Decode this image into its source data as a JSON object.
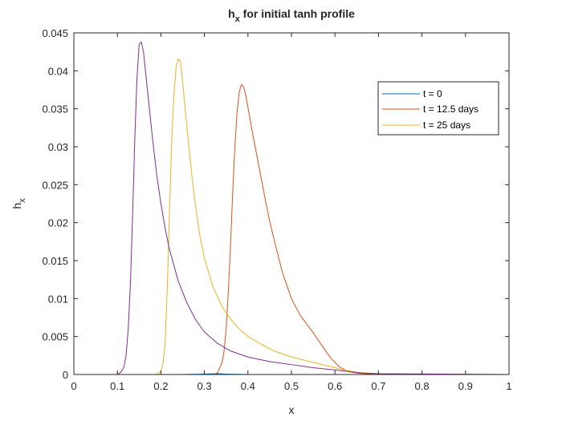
{
  "chart_data": {
    "type": "line",
    "title": "h",
    "title_sub": "x",
    "title_rest": " for initial tanh profile",
    "xlabel": "x",
    "ylabel": "h",
    "ylabel_sub": "x",
    "xlim": [
      0,
      1
    ],
    "ylim": [
      0,
      0.045
    ],
    "xticks": [
      "0",
      "0.1",
      "0.2",
      "0.3",
      "0.4",
      "0.5",
      "0.6",
      "0.7",
      "0.8",
      "0.9",
      "1"
    ],
    "yticks": [
      "0",
      "0.005",
      "0.01",
      "0.015",
      "0.02",
      "0.025",
      "0.03",
      "0.035",
      "0.04",
      "0.045"
    ],
    "grid": false,
    "legend_position": "top-right",
    "series": [
      {
        "name": "t = 0",
        "color": "#0072BD",
        "x": [
          0,
          0.25,
          0.3,
          0.33,
          0.35,
          0.4,
          1
        ],
        "y": [
          0,
          0,
          5e-05,
          0.0001,
          5e-05,
          0,
          0
        ]
      },
      {
        "name": "t = 12.5 days",
        "color": "#D95319",
        "x": [
          0,
          0.32,
          0.33,
          0.34,
          0.345,
          0.35,
          0.355,
          0.36,
          0.365,
          0.37,
          0.375,
          0.38,
          0.385,
          0.39,
          0.395,
          0.4,
          0.41,
          0.42,
          0.43,
          0.44,
          0.45,
          0.46,
          0.47,
          0.48,
          0.5,
          0.52,
          0.55,
          0.57,
          0.59,
          0.61,
          0.63,
          0.65,
          0.67,
          0.69,
          0.72,
          1
        ],
        "y": [
          0,
          0,
          0.0002,
          0.0015,
          0.003,
          0.006,
          0.011,
          0.017,
          0.024,
          0.03,
          0.0345,
          0.0372,
          0.0382,
          0.0379,
          0.0368,
          0.0352,
          0.032,
          0.029,
          0.026,
          0.023,
          0.0202,
          0.0178,
          0.0155,
          0.0133,
          0.01,
          0.0078,
          0.0055,
          0.0038,
          0.0022,
          0.001,
          0.0004,
          0.0002,
          0.0001,
          5e-05,
          0,
          0
        ]
      },
      {
        "name": "t = 25 days",
        "color": "#EDB120",
        "x": [
          0,
          0.19,
          0.2,
          0.205,
          0.21,
          0.215,
          0.22,
          0.225,
          0.23,
          0.235,
          0.24,
          0.245,
          0.25,
          0.26,
          0.27,
          0.28,
          0.29,
          0.3,
          0.32,
          0.34,
          0.36,
          0.38,
          0.4,
          0.43,
          0.46,
          0.5,
          0.55,
          0.6,
          0.62,
          0.65,
          0.67,
          0.7,
          0.73,
          1
        ],
        "y": [
          0,
          0,
          0.0004,
          0.0015,
          0.0045,
          0.012,
          0.022,
          0.031,
          0.037,
          0.0405,
          0.0416,
          0.0412,
          0.0385,
          0.0325,
          0.0268,
          0.022,
          0.0182,
          0.0153,
          0.0115,
          0.009,
          0.0073,
          0.006,
          0.005,
          0.004,
          0.0031,
          0.0023,
          0.0016,
          0.0009,
          0.0006,
          0.0003,
          0.0002,
          0.0001,
          5e-05,
          0
        ]
      },
      {
        "name": "",
        "color": "#7E2F8E",
        "x": [
          0,
          0.1,
          0.11,
          0.115,
          0.12,
          0.125,
          0.13,
          0.135,
          0.14,
          0.145,
          0.15,
          0.155,
          0.16,
          0.17,
          0.18,
          0.19,
          0.2,
          0.21,
          0.22,
          0.24,
          0.26,
          0.28,
          0.3,
          0.33,
          0.36,
          0.4,
          0.45,
          0.5,
          0.55,
          0.6,
          0.63,
          0.66,
          0.7,
          1
        ],
        "y": [
          0,
          0,
          0.0004,
          0.001,
          0.0025,
          0.006,
          0.012,
          0.021,
          0.031,
          0.039,
          0.0435,
          0.0438,
          0.0425,
          0.037,
          0.0315,
          0.0265,
          0.0225,
          0.0192,
          0.0164,
          0.0123,
          0.0094,
          0.0072,
          0.0056,
          0.0041,
          0.0031,
          0.0023,
          0.0017,
          0.0013,
          0.0009,
          0.0006,
          0.0004,
          0.0002,
          0.0001,
          0
        ]
      }
    ]
  }
}
